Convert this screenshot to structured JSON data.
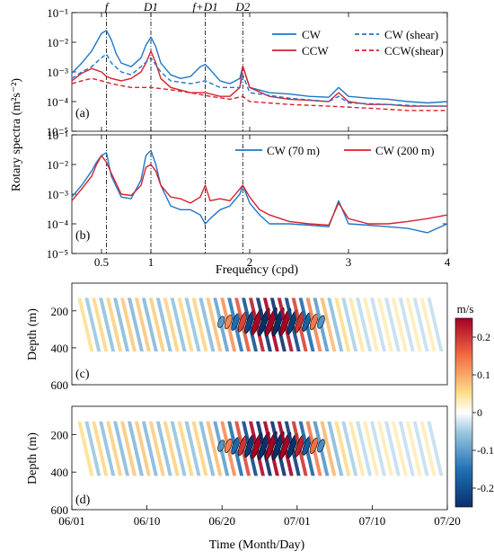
{
  "chart_data": [
    {
      "type": "line",
      "panel_label": "(a)",
      "y_scale": "log",
      "ylim": [
        1e-05,
        0.1
      ],
      "xlim": [
        0.2,
        4
      ],
      "y_ticks": [
        "10⁻⁵",
        "10⁻⁴",
        "10⁻³",
        "10⁻²",
        "10⁻¹"
      ],
      "ylabel": "Rotary spectra (m²s⁻²)",
      "vlines": [
        {
          "x": 0.55,
          "label": "f"
        },
        {
          "x": 1.0,
          "label": "D1"
        },
        {
          "x": 1.55,
          "label": "f+D1"
        },
        {
          "x": 1.93,
          "label": "D2"
        }
      ],
      "series": [
        {
          "name": "CW",
          "color": "#1f77c8",
          "dash": "solid",
          "x": [
            0.2,
            0.3,
            0.4,
            0.45,
            0.5,
            0.55,
            0.6,
            0.65,
            0.7,
            0.8,
            0.9,
            0.95,
            1.0,
            1.05,
            1.1,
            1.2,
            1.3,
            1.4,
            1.5,
            1.55,
            1.6,
            1.7,
            1.8,
            1.9,
            1.93,
            2.0,
            2.2,
            2.4,
            2.6,
            2.8,
            2.9,
            3.0,
            3.2,
            3.4,
            3.6,
            3.8,
            4.0
          ],
          "values": [
            0.0009,
            0.002,
            0.005,
            0.01,
            0.02,
            0.025,
            0.012,
            0.004,
            0.002,
            0.0015,
            0.003,
            0.008,
            0.015,
            0.007,
            0.002,
            0.0008,
            0.0006,
            0.0007,
            0.0015,
            0.0018,
            0.0012,
            0.0005,
            0.0004,
            0.0006,
            0.0015,
            0.0003,
            0.0002,
            0.00018,
            0.00015,
            0.00014,
            0.0003,
            0.00015,
            0.00013,
            0.00012,
            0.0001,
            9e-05,
            0.0001
          ]
        },
        {
          "name": "CCW",
          "color": "#d6212e",
          "dash": "solid",
          "x": [
            0.2,
            0.3,
            0.4,
            0.5,
            0.55,
            0.6,
            0.7,
            0.8,
            0.9,
            0.95,
            1.0,
            1.05,
            1.1,
            1.2,
            1.4,
            1.55,
            1.7,
            1.8,
            1.9,
            1.93,
            2.0,
            2.2,
            2.4,
            2.6,
            2.8,
            2.9,
            3.0,
            3.2,
            3.4,
            3.6,
            3.8,
            4.0
          ],
          "values": [
            0.0005,
            0.0009,
            0.0013,
            0.001,
            0.0007,
            0.0006,
            0.0005,
            0.0006,
            0.001,
            0.002,
            0.005,
            0.002,
            0.0006,
            0.0003,
            0.0002,
            0.0002,
            0.00015,
            0.00015,
            0.0003,
            0.0016,
            0.0003,
            0.00015,
            0.00012,
            0.00011,
            0.0001,
            0.0002,
            0.0001,
            8e-05,
            8e-05,
            7e-05,
            7e-05,
            7e-05
          ]
        },
        {
          "name": "CW (shear)",
          "color": "#1f77c8",
          "dash": "dashed",
          "x": [
            0.2,
            0.3,
            0.4,
            0.5,
            0.55,
            0.6,
            0.7,
            0.8,
            0.9,
            1.0,
            1.1,
            1.2,
            1.4,
            1.55,
            1.7,
            1.9,
            1.93,
            2.0,
            2.4,
            2.8,
            2.9,
            3.0,
            3.4,
            3.8,
            4.0
          ],
          "values": [
            0.0006,
            0.001,
            0.0015,
            0.003,
            0.004,
            0.002,
            0.001,
            0.0008,
            0.0015,
            0.003,
            0.001,
            0.0005,
            0.0004,
            0.0005,
            0.0003,
            0.0003,
            0.0008,
            0.0002,
            0.00013,
            0.0001,
            0.00015,
            9e-05,
            8e-05,
            7e-05,
            7e-05
          ]
        },
        {
          "name": "CCW(shear)",
          "color": "#d6212e",
          "dash": "dashed",
          "x": [
            0.2,
            0.3,
            0.4,
            0.5,
            0.6,
            0.8,
            1.0,
            1.2,
            1.4,
            1.6,
            1.8,
            1.93,
            2.0,
            2.4,
            2.8,
            3.2,
            3.6,
            4.0
          ],
          "values": [
            0.0004,
            0.0005,
            0.0006,
            0.0005,
            0.0004,
            0.0003,
            0.0003,
            0.00025,
            0.0002,
            0.00015,
            0.00012,
            0.00015,
            0.0001,
            8e-05,
            7e-05,
            6e-05,
            5e-05,
            5e-05
          ]
        }
      ]
    },
    {
      "type": "line",
      "panel_label": "(b)",
      "y_scale": "log",
      "ylim": [
        1e-05,
        0.1
      ],
      "xlim": [
        0.2,
        4
      ],
      "x_ticks": [
        0.5,
        1,
        2,
        3,
        4
      ],
      "xlabel": "Frequency (cpd)",
      "y_ticks": [
        "10⁻⁵",
        "10⁻⁴",
        "10⁻³",
        "10⁻²",
        "10⁻¹"
      ],
      "series": [
        {
          "name": "CW (70 m)",
          "color": "#1f77c8",
          "x": [
            0.2,
            0.3,
            0.4,
            0.45,
            0.5,
            0.55,
            0.6,
            0.7,
            0.8,
            0.9,
            0.95,
            1.0,
            1.05,
            1.1,
            1.2,
            1.3,
            1.4,
            1.5,
            1.55,
            1.6,
            1.7,
            1.8,
            1.9,
            1.93,
            2.0,
            2.1,
            2.2,
            2.4,
            2.6,
            2.8,
            2.9,
            3.0,
            3.2,
            3.4,
            3.6,
            3.8,
            4.0
          ],
          "values": [
            0.0008,
            0.002,
            0.006,
            0.012,
            0.02,
            0.025,
            0.004,
            0.0008,
            0.0007,
            0.003,
            0.02,
            0.03,
            0.01,
            0.002,
            0.0004,
            0.0003,
            0.0003,
            0.0002,
            0.0001,
            0.00015,
            0.0003,
            0.0004,
            0.001,
            0.002,
            0.0005,
            0.0002,
            0.0001,
            0.0001,
            9e-05,
            8e-05,
            0.0006,
            0.0001,
            9e-05,
            8e-05,
            7e-05,
            5e-05,
            0.0001
          ]
        },
        {
          "name": "CW (200 m)",
          "color": "#d6212e",
          "x": [
            0.2,
            0.3,
            0.4,
            0.45,
            0.5,
            0.55,
            0.6,
            0.7,
            0.8,
            0.9,
            0.95,
            1.0,
            1.05,
            1.1,
            1.2,
            1.3,
            1.4,
            1.5,
            1.55,
            1.6,
            1.7,
            1.8,
            1.9,
            1.93,
            2.0,
            2.1,
            2.2,
            2.4,
            2.6,
            2.8,
            2.9,
            3.0,
            3.2,
            3.4,
            3.6,
            3.8,
            4.0
          ],
          "values": [
            0.0006,
            0.0015,
            0.004,
            0.01,
            0.02,
            0.012,
            0.005,
            0.001,
            0.0009,
            0.002,
            0.008,
            0.01,
            0.006,
            0.002,
            0.0008,
            0.0007,
            0.0005,
            0.0008,
            0.002,
            0.0006,
            0.0007,
            0.0006,
            0.0015,
            0.002,
            0.0008,
            0.0003,
            0.0002,
            0.00012,
            0.0001,
            9e-05,
            0.0005,
            0.00015,
            0.0001,
            0.0001,
            0.00012,
            0.00015,
            0.0002
          ]
        }
      ]
    },
    {
      "type": "heatmap",
      "panel_label": "(c)",
      "ylabel": "Depth (m)",
      "y_ticks": [
        200,
        400,
        600
      ],
      "ylim": [
        600,
        50
      ],
      "x_ticks": [
        "06/01",
        "06/10",
        "06/20",
        "07/01",
        "07/10",
        "07/20"
      ]
    },
    {
      "type": "heatmap",
      "panel_label": "(d)",
      "ylabel": "Depth (m)",
      "xlabel": "Time (Month/Day)",
      "y_ticks": [
        200,
        400,
        600
      ],
      "ylim": [
        600,
        50
      ],
      "x_ticks": [
        "06/01",
        "06/10",
        "06/20",
        "07/01",
        "07/10",
        "07/20"
      ]
    }
  ],
  "colorbar": {
    "unit": "m/s",
    "ticks": [
      "0.2",
      "0.1",
      "0",
      "-0.1",
      "-0.2"
    ],
    "range": [
      -0.25,
      0.25
    ]
  }
}
